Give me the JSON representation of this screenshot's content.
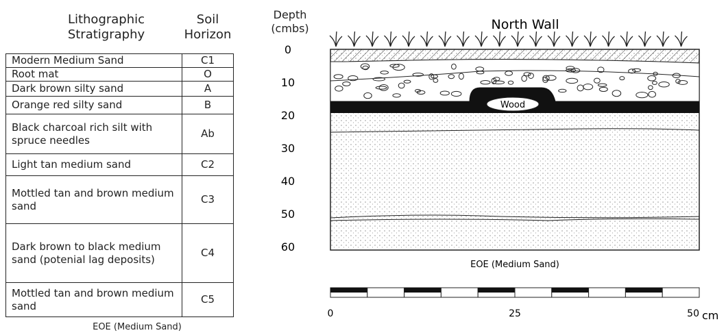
{
  "legend": {
    "headers": [
      "Lithographic Stratigraphy",
      "Soil Horizon"
    ],
    "rows": [
      [
        "Modern Medium Sand",
        "C1"
      ],
      [
        "Root mat",
        "O"
      ],
      [
        "Dark brown silty sand",
        "A"
      ],
      [
        "Orange red silty sand",
        "B"
      ],
      [
        "Black charcoal rich silt with spruce needles",
        "Ab"
      ],
      [
        "Light tan medium sand",
        "C2"
      ],
      [
        "Mottled tan and brown medium sand",
        "C3"
      ],
      [
        "Dark brown to black medium sand (potenial lag deposits)",
        "C4"
      ],
      [
        "Mottled tan and brown medium sand",
        "C5"
      ]
    ],
    "footer": "EOE (Medium Sand)"
  },
  "profile": {
    "title": "North Wall",
    "depth_label": "Depth (cmbs)",
    "depth_ticks": [
      0,
      10,
      20,
      30,
      40,
      50,
      60
    ],
    "feature_label": "Wood",
    "base_label": "EOE (Medium Sand)"
  },
  "scale": {
    "ticks": [
      0,
      25,
      50
    ],
    "unit": "cm"
  }
}
